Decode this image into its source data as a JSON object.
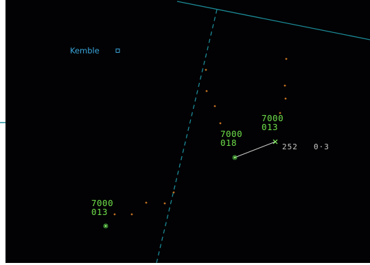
{
  "fix": {
    "name": "Kemble",
    "icon": "square-fix-icon",
    "color": "#3aa6dc"
  },
  "colors": {
    "background": "#020204",
    "airway": "#1c8c99",
    "track_trail": "#c07020",
    "datablock": "#6fe04a",
    "vector_readout": "#c9c9c9"
  },
  "aircraft": [
    {
      "id": "track-a",
      "altitude": "7000",
      "speed": "013"
    },
    {
      "id": "track-b",
      "altitude": "7000",
      "speed": "018"
    },
    {
      "id": "track-c",
      "altitude": "7000",
      "speed": "013"
    }
  ],
  "measurement": {
    "bearing": "252",
    "distance": "0·3"
  }
}
